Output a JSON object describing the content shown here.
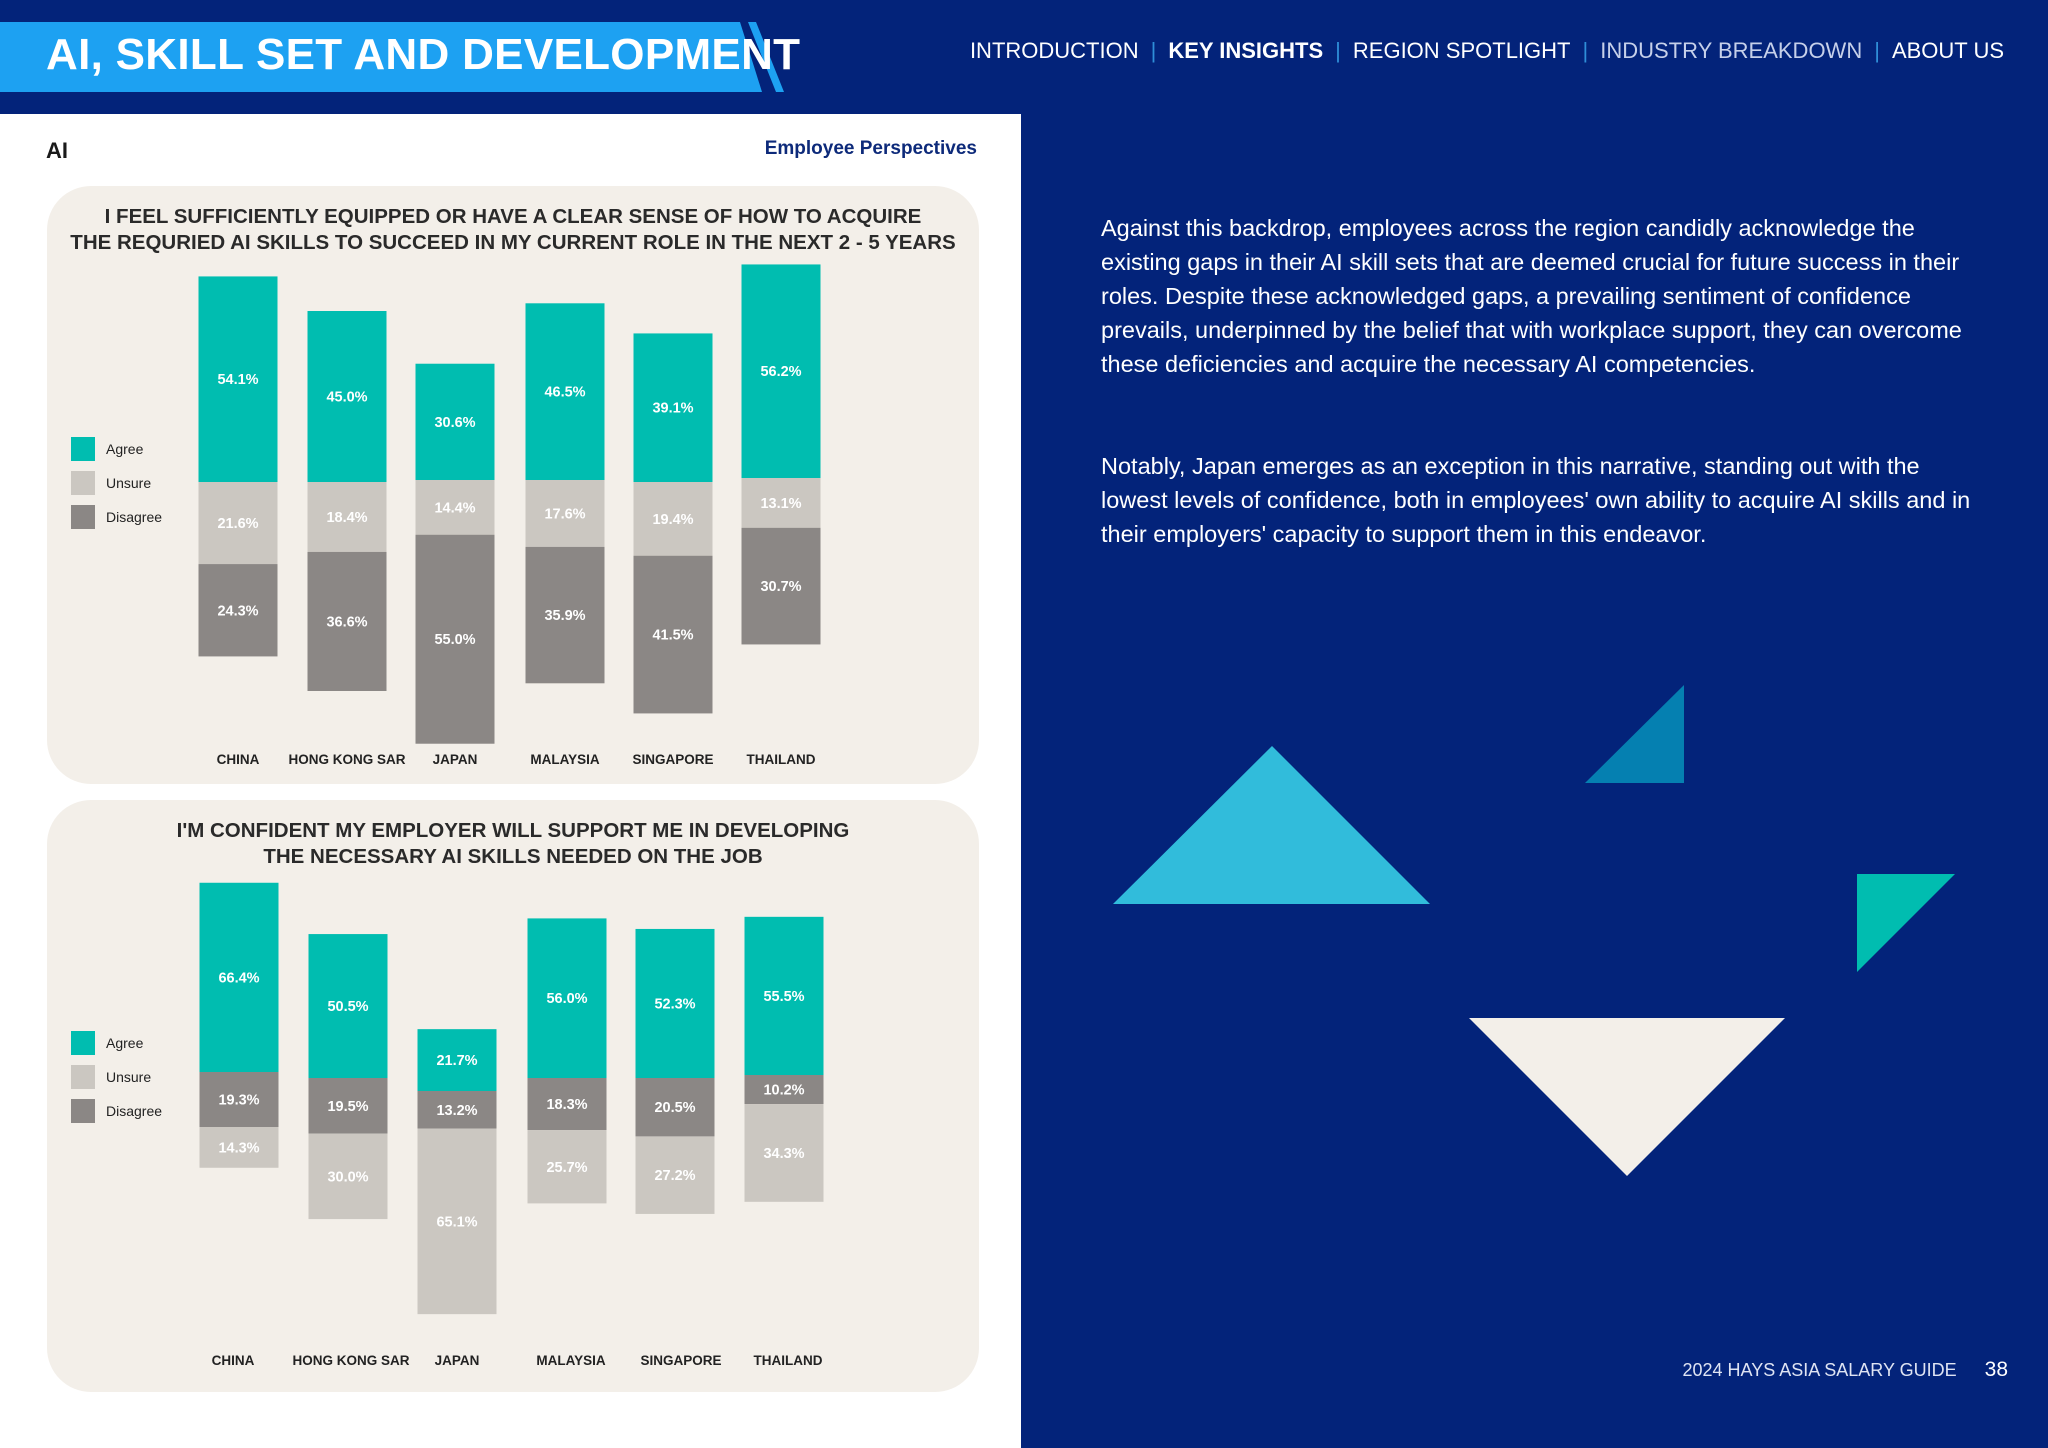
{
  "header": {
    "title": "AI, SKILL SET AND DEVELOPMENT",
    "nav": [
      {
        "label": "INTRODUCTION",
        "state": "normal"
      },
      {
        "label": "KEY INSIGHTS",
        "state": "active"
      },
      {
        "label": "REGION SPOTLIGHT",
        "state": "normal"
      },
      {
        "label": "INDUSTRY BREAKDOWN",
        "state": "muted"
      },
      {
        "label": "ABOUT US",
        "state": "normal"
      }
    ]
  },
  "left": {
    "section_label": "AI",
    "perspective_label": "Employee Perspectives"
  },
  "legend": {
    "agree": "Agree",
    "unsure": "Unsure",
    "disagree": "Disagree"
  },
  "colors": {
    "agree": "#00bdb0",
    "unsure": "#cbc7c1",
    "disagree": "#8b8785",
    "accent": "#1da1f2",
    "navy": "#03237a"
  },
  "chart_data": [
    {
      "type": "bar",
      "stacked": true,
      "title": "I FEEL SUFFICIENTLY EQUIPPED OR HAVE A CLEAR SENSE OF HOW TO ACQUIRE THE REQURIED AI SKILLS TO SUCCEED IN MY CURRENT ROLE IN THE NEXT 2 - 5 YEARS",
      "title_lines": [
        "I FEEL SUFFICIENTLY EQUIPPED OR HAVE A CLEAR SENSE OF HOW TO ACQUIRE",
        "THE REQURIED AI SKILLS TO SUCCEED IN MY CURRENT ROLE IN THE NEXT 2 - 5 YEARS"
      ],
      "categories": [
        "CHINA",
        "HONG KONG SAR",
        "JAPAN",
        "MALAYSIA",
        "SINGAPORE",
        "THAILAND"
      ],
      "stack_order": [
        "Agree",
        "Unsure",
        "Disagree"
      ],
      "series": [
        {
          "name": "Agree",
          "values": [
            54.1,
            45.0,
            30.6,
            46.5,
            39.1,
            56.2
          ]
        },
        {
          "name": "Unsure",
          "values": [
            21.6,
            18.4,
            14.4,
            17.6,
            19.4,
            13.1
          ]
        },
        {
          "name": "Disagree",
          "values": [
            24.3,
            36.6,
            55.0,
            35.9,
            41.5,
            30.7
          ]
        }
      ],
      "unit": "%",
      "legend_position": "left"
    },
    {
      "type": "bar",
      "stacked": true,
      "title": "I'M CONFIDENT MY EMPLOYER WILL SUPPORT ME IN DEVELOPING THE NECESSARY AI SKILLS NEEDED ON THE JOB",
      "title_lines": [
        "I'M CONFIDENT MY EMPLOYER WILL SUPPORT ME IN DEVELOPING",
        "THE NECESSARY AI SKILLS NEEDED ON THE JOB"
      ],
      "categories": [
        "CHINA",
        "HONG KONG SAR",
        "JAPAN",
        "MALAYSIA",
        "SINGAPORE",
        "THAILAND"
      ],
      "stack_order": [
        "Agree",
        "Disagree",
        "Unsure"
      ],
      "series": [
        {
          "name": "Agree",
          "values": [
            66.4,
            50.5,
            21.7,
            56.0,
            52.3,
            55.5
          ]
        },
        {
          "name": "Disagree",
          "values": [
            19.3,
            19.5,
            13.2,
            18.3,
            20.5,
            10.2
          ]
        },
        {
          "name": "Unsure",
          "values": [
            14.3,
            30.0,
            65.1,
            25.7,
            27.2,
            34.3
          ]
        }
      ],
      "unit": "%",
      "legend_position": "left"
    }
  ],
  "body": {
    "paragraph_1": "Against this backdrop, employees across the region candidly acknowledge the existing gaps in their AI skill sets that are deemed crucial for future success in their roles. Despite these acknowledged gaps, a prevailing sentiment of confidence prevails, underpinned by the belief that with workplace support, they can overcome these deficiencies and acquire the necessary AI competencies.",
    "paragraph_2": "Notably, Japan emerges as an exception in this narrative, standing out with the lowest levels of confidence, both in employees' own ability to acquire AI skills and in their employers' capacity to support them in this endeavor."
  },
  "footer": {
    "guide": "2024 HAYS ASIA SALARY GUIDE",
    "page_number": "38"
  }
}
